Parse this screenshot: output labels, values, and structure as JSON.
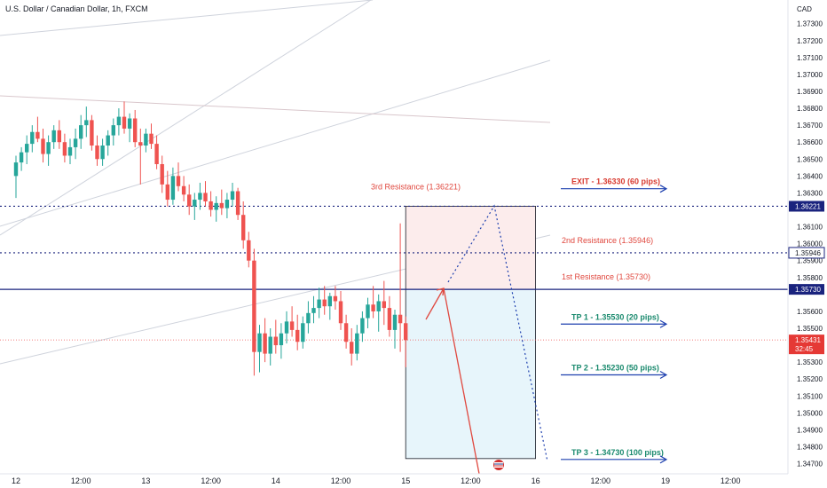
{
  "header": {
    "symbol_title": "U.S. Dollar / Canadian Dollar, 1h, FXCM",
    "currency": "CAD",
    "countdown": "32:45"
  },
  "colors": {
    "up": "#26a69a",
    "down": "#ef5350",
    "resistance_line": "#1a237e",
    "current_line": "#ef5350",
    "tp_text": "#1a8a6e",
    "exit_text": "#d83a30",
    "arrow": "#1e40af",
    "box_upper": "#fcecec",
    "box_lower": "#e7f5fb"
  },
  "chart_data": {
    "type": "candlestick",
    "title": "U.S. Dollar / Canadian Dollar, 1h, FXCM",
    "y_axis": {
      "unit": "CAD",
      "range": [
        1.3464,
        1.3744
      ],
      "ticks": [
        "1.37300",
        "1.37200",
        "1.37100",
        "1.37000",
        "1.36900",
        "1.36800",
        "1.36700",
        "1.36600",
        "1.36500",
        "1.36400",
        "1.36300",
        "1.36100",
        "1.36000",
        "1.35900",
        "1.35800",
        "1.35600",
        "1.35500",
        "1.35300",
        "1.35200",
        "1.35100",
        "1.35000",
        "1.34900",
        "1.34800",
        "1.34700"
      ],
      "tick_values": [
        1.373,
        1.372,
        1.371,
        1.37,
        1.369,
        1.368,
        1.367,
        1.366,
        1.365,
        1.364,
        1.363,
        1.361,
        1.36,
        1.359,
        1.358,
        1.356,
        1.355,
        1.353,
        1.352,
        1.351,
        1.35,
        1.349,
        1.348,
        1.347
      ]
    },
    "x_axis": {
      "ticks": [
        "12",
        "12:00",
        "13",
        "12:00",
        "14",
        "12:00",
        "15",
        "12:00",
        "16",
        "12:00",
        "19",
        "12:00"
      ],
      "tick_hours": [
        0,
        12,
        24,
        36,
        48,
        60,
        72,
        84,
        96,
        108,
        120,
        132
      ]
    },
    "price_labels": [
      {
        "text": "1.36221",
        "value": 1.36221,
        "style": "navy"
      },
      {
        "text": "1.35946",
        "value": 1.35946,
        "style": "outline"
      },
      {
        "text": "1.35730",
        "value": 1.3573,
        "style": "navy"
      },
      {
        "text": "1.35431",
        "value": 1.35431,
        "style": "red"
      }
    ],
    "levels": [
      {
        "name": "3rd Resistance",
        "label": "3rd Resistance (1.36221)",
        "value": 1.36221,
        "style": "dotted"
      },
      {
        "name": "2nd Resistance",
        "label": "2nd Resistance (1.35946)",
        "value": 1.35946,
        "style": "dotted"
      },
      {
        "name": "1st Resistance",
        "label": "1st Resistance (1.35730)",
        "value": 1.3573,
        "style": "solid"
      }
    ],
    "current_price": 1.35431,
    "targets": [
      {
        "label": "EXIT - 1.36330 (60 pips)",
        "value": 1.3633,
        "kind": "exit"
      },
      {
        "label": "TP 1 - 1.35530 (20 pips)",
        "value": 1.3553,
        "kind": "tp"
      },
      {
        "label": "TP 2 - 1.35230 (50 pips)",
        "value": 1.3523,
        "kind": "tp"
      },
      {
        "label": "TP 3 - 1.34730 (100 pips)",
        "value": 1.3473,
        "kind": "tp"
      }
    ],
    "position_box": {
      "start_hour": 72,
      "end_hour": 96,
      "top": 1.36221,
      "entry": 1.3573,
      "bottom": 1.3473
    },
    "candles": [
      [
        1.364,
        1.3652,
        1.3627,
        1.3648
      ],
      [
        1.3648,
        1.3657,
        1.3643,
        1.3654
      ],
      [
        1.3654,
        1.3664,
        1.3647,
        1.3659
      ],
      [
        1.3659,
        1.367,
        1.3654,
        1.3666
      ],
      [
        1.3666,
        1.3675,
        1.366,
        1.3662
      ],
      [
        1.3662,
        1.3668,
        1.3648,
        1.3653
      ],
      [
        1.3653,
        1.3664,
        1.3646,
        1.366
      ],
      [
        1.366,
        1.367,
        1.3656,
        1.3667
      ],
      [
        1.3667,
        1.3673,
        1.3656,
        1.366
      ],
      [
        1.366,
        1.3665,
        1.3648,
        1.3652
      ],
      [
        1.3652,
        1.3662,
        1.3647,
        1.3657
      ],
      [
        1.3657,
        1.3668,
        1.365,
        1.3662
      ],
      [
        1.3662,
        1.3676,
        1.3656,
        1.367
      ],
      [
        1.367,
        1.3681,
        1.3663,
        1.3673
      ],
      [
        1.3673,
        1.3676,
        1.3655,
        1.3658
      ],
      [
        1.3658,
        1.3664,
        1.3646,
        1.365
      ],
      [
        1.365,
        1.3662,
        1.3646,
        1.3658
      ],
      [
        1.3658,
        1.3667,
        1.3652,
        1.3664
      ],
      [
        1.3664,
        1.3674,
        1.3658,
        1.367
      ],
      [
        1.367,
        1.368,
        1.3664,
        1.3675
      ],
      [
        1.3675,
        1.3684,
        1.3665,
        1.3668
      ],
      [
        1.3668,
        1.3677,
        1.366,
        1.3674
      ],
      [
        1.3674,
        1.3679,
        1.3657,
        1.366
      ],
      [
        1.366,
        1.3668,
        1.3635,
        1.3658
      ],
      [
        1.3658,
        1.3668,
        1.3654,
        1.3665
      ],
      [
        1.3665,
        1.3671,
        1.3656,
        1.3659
      ],
      [
        1.3659,
        1.3664,
        1.3644,
        1.3647
      ],
      [
        1.3647,
        1.3652,
        1.363,
        1.3635
      ],
      [
        1.3635,
        1.3643,
        1.3622,
        1.3626
      ],
      [
        1.3626,
        1.3645,
        1.3623,
        1.364
      ],
      [
        1.364,
        1.3648,
        1.3631,
        1.3634
      ],
      [
        1.3634,
        1.364,
        1.3625,
        1.3629
      ],
      [
        1.3629,
        1.3635,
        1.3617,
        1.3622
      ],
      [
        1.3622,
        1.363,
        1.3614,
        1.3626
      ],
      [
        1.3626,
        1.3636,
        1.362,
        1.363
      ],
      [
        1.363,
        1.3637,
        1.3622,
        1.3625
      ],
      [
        1.3625,
        1.3631,
        1.3616,
        1.362
      ],
      [
        1.362,
        1.3628,
        1.3613,
        1.3624
      ],
      [
        1.3624,
        1.3632,
        1.3617,
        1.3621
      ],
      [
        1.3621,
        1.363,
        1.3615,
        1.3626
      ],
      [
        1.3626,
        1.3636,
        1.3622,
        1.3631
      ],
      [
        1.3631,
        1.3633,
        1.3614,
        1.3617
      ],
      [
        1.3617,
        1.3625,
        1.3597,
        1.3602
      ],
      [
        1.3602,
        1.3607,
        1.3586,
        1.359
      ],
      [
        1.359,
        1.3597,
        1.3522,
        1.3536
      ],
      [
        1.3536,
        1.3552,
        1.3524,
        1.3547
      ],
      [
        1.3547,
        1.3556,
        1.353,
        1.3535
      ],
      [
        1.3535,
        1.355,
        1.3528,
        1.3545
      ],
      [
        1.3545,
        1.3555,
        1.3535,
        1.354
      ],
      [
        1.354,
        1.3553,
        1.3532,
        1.3547
      ],
      [
        1.3547,
        1.356,
        1.3541,
        1.3554
      ],
      [
        1.3554,
        1.3563,
        1.3545,
        1.3549
      ],
      [
        1.3549,
        1.3558,
        1.3537,
        1.3542
      ],
      [
        1.3542,
        1.3557,
        1.3538,
        1.3553
      ],
      [
        1.3553,
        1.3566,
        1.3547,
        1.3559
      ],
      [
        1.3559,
        1.3569,
        1.3553,
        1.3562
      ],
      [
        1.3562,
        1.3574,
        1.3556,
        1.3567
      ],
      [
        1.3567,
        1.3575,
        1.3558,
        1.3563
      ],
      [
        1.3563,
        1.3571,
        1.3555,
        1.3569
      ],
      [
        1.3569,
        1.3575,
        1.3561,
        1.3566
      ],
      [
        1.3566,
        1.3572,
        1.3549,
        1.3553
      ],
      [
        1.3553,
        1.3558,
        1.3538,
        1.3542
      ],
      [
        1.3542,
        1.355,
        1.3528,
        1.3535
      ],
      [
        1.3535,
        1.3552,
        1.3531,
        1.3547
      ],
      [
        1.3547,
        1.356,
        1.3542,
        1.3556
      ],
      [
        1.3556,
        1.3568,
        1.355,
        1.3564
      ],
      [
        1.3564,
        1.3575,
        1.3556,
        1.356
      ],
      [
        1.356,
        1.357,
        1.3548,
        1.3566
      ],
      [
        1.3566,
        1.3578,
        1.3552,
        1.3562
      ],
      [
        1.3562,
        1.3569,
        1.3545,
        1.3549
      ],
      [
        1.3549,
        1.3561,
        1.3538,
        1.3558
      ],
      [
        1.3558,
        1.3612,
        1.3536,
        1.3553
      ],
      [
        1.3553,
        1.3557,
        1.3527,
        1.3543
      ]
    ]
  }
}
